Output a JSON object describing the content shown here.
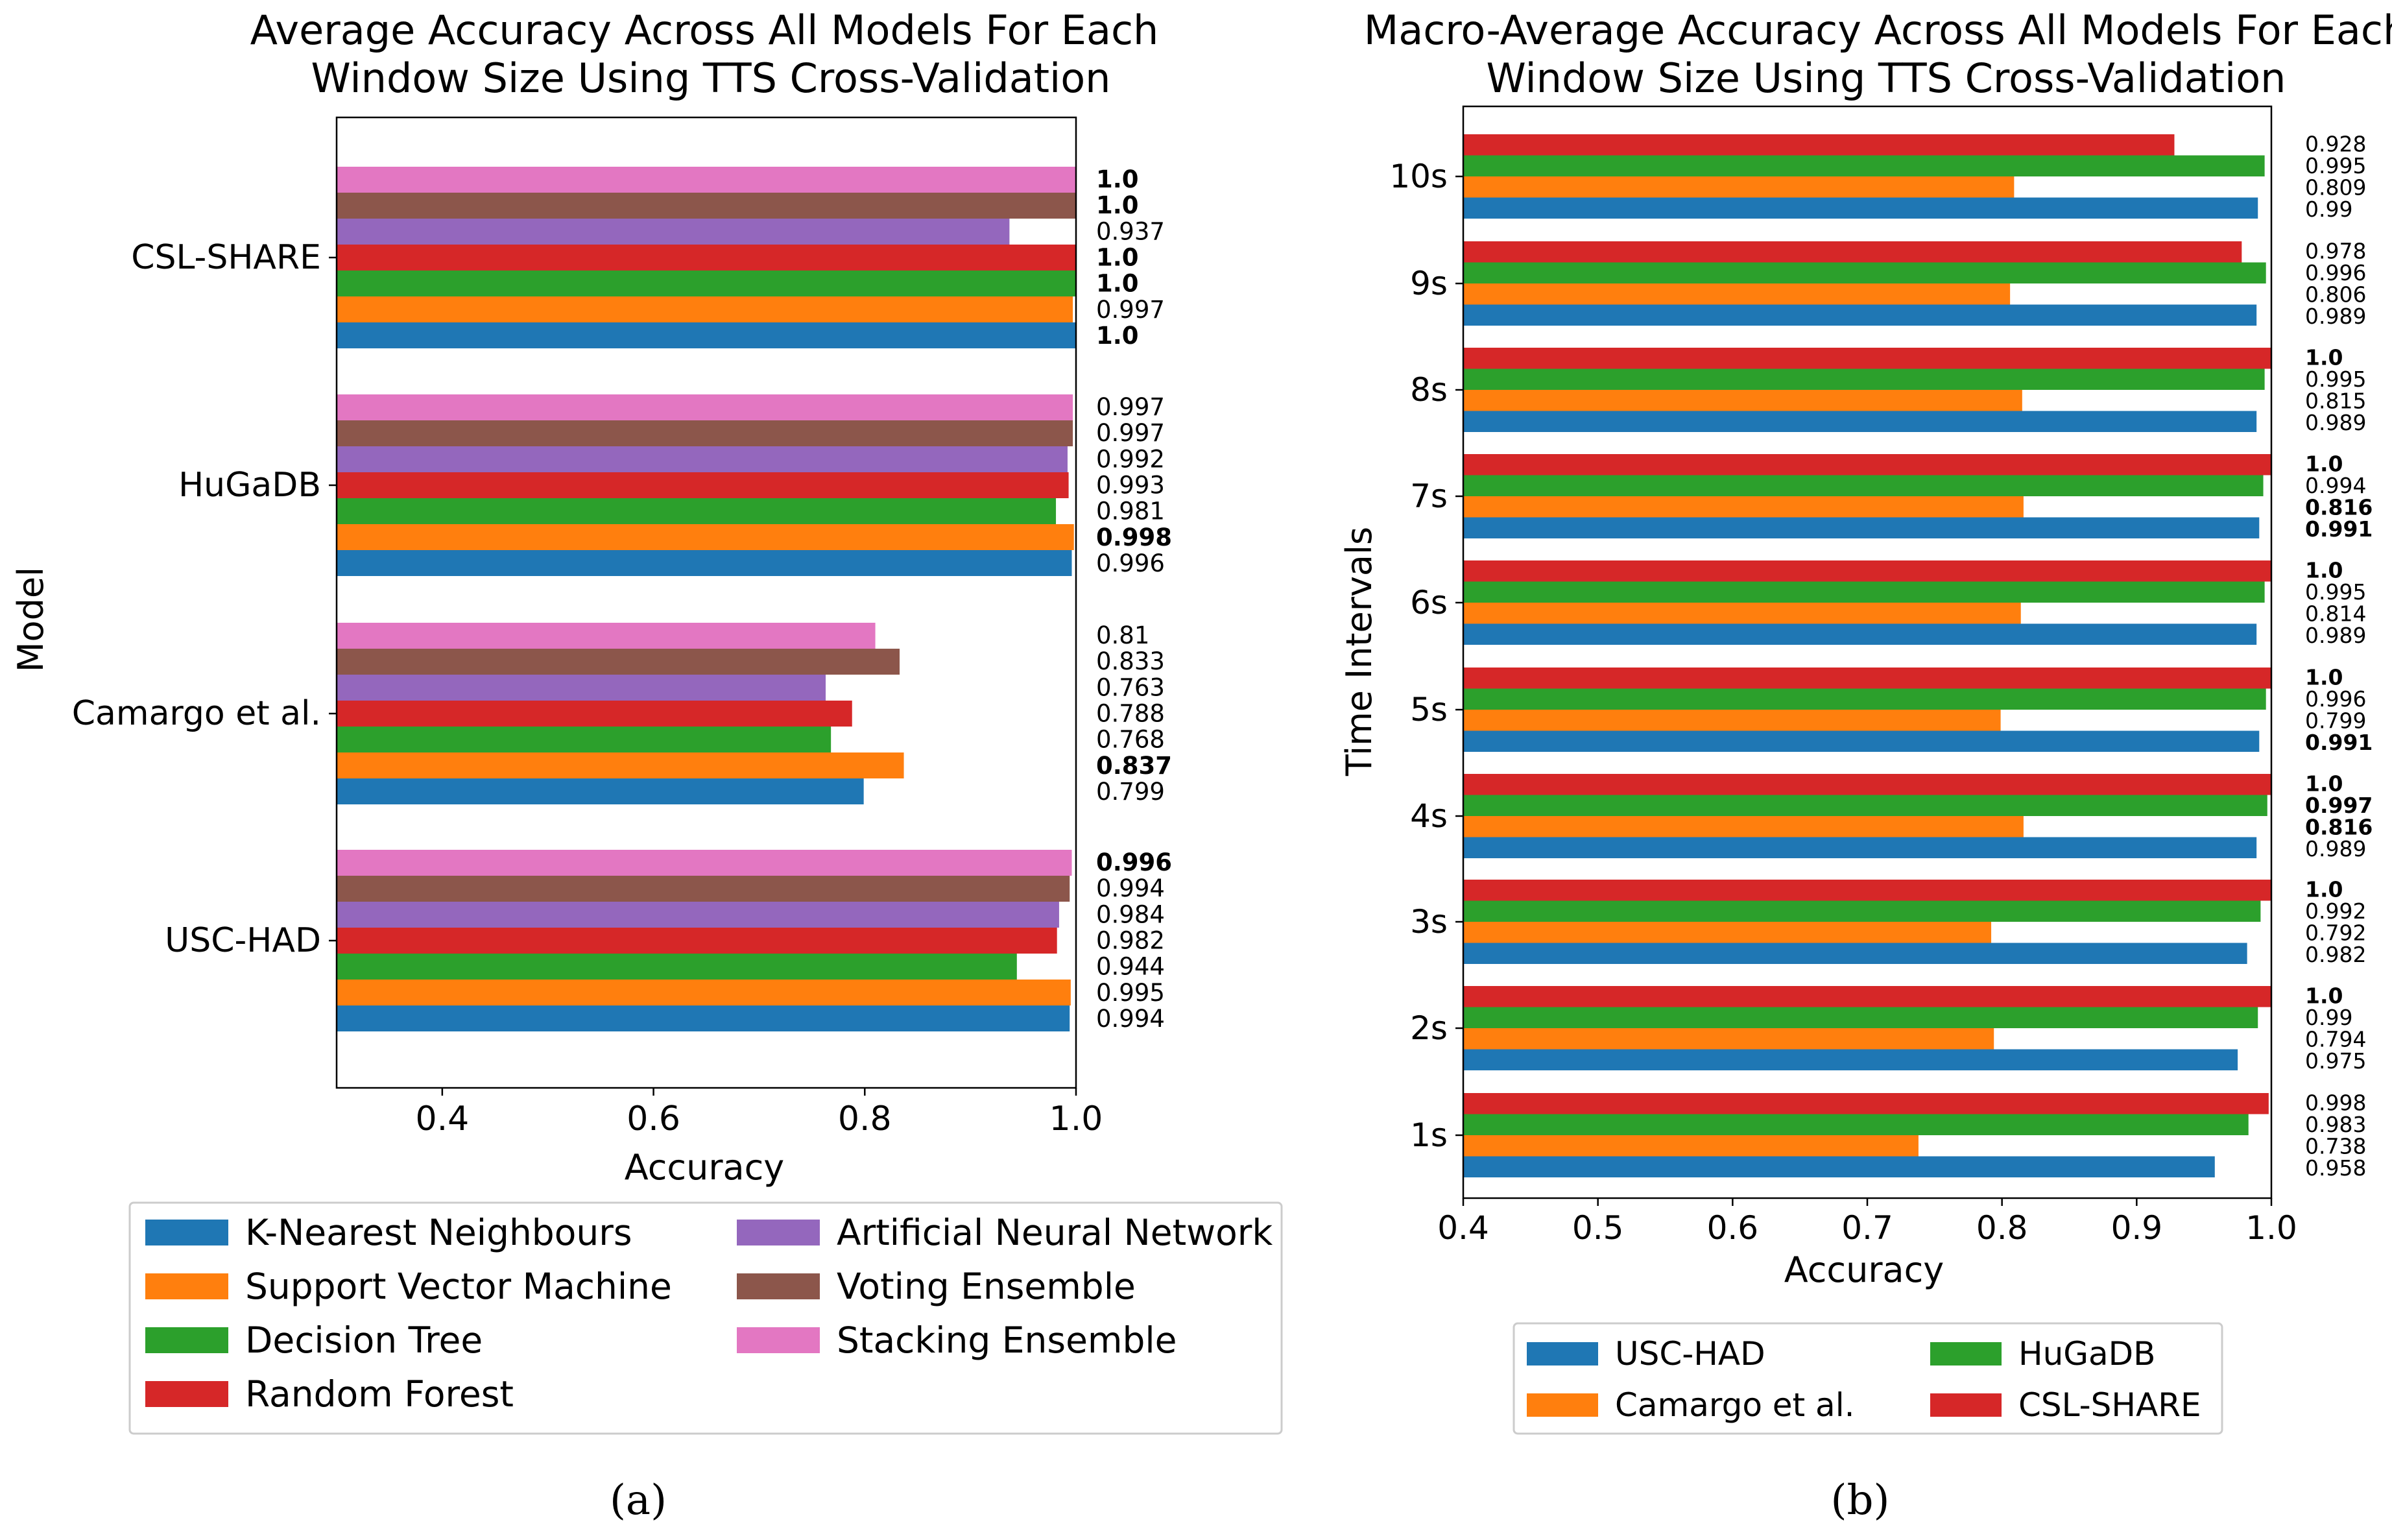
{
  "chart_data": [
    {
      "type": "bar",
      "orientation": "horizontal",
      "title": "Average Accuracy Across All Models For Each Window Size Using TTS Cross-Validation",
      "title_lines": [
        "Average Accuracy Across All Models For Each",
        "Window Size Using TTS Cross-Validation"
      ],
      "xlabel": "Accuracy",
      "ylabel": "Model",
      "xlim": [
        0.3,
        1.0
      ],
      "xticks": [
        "0.4",
        "0.6",
        "0.8",
        "1.0"
      ],
      "categories": [
        "CSL-SHARE",
        "HuGaDB",
        "Camargo et al.",
        "USC-HAD"
      ],
      "series": [
        {
          "name": "K-Nearest Neighbours",
          "color": "#1f77b4",
          "values": [
            1.0,
            0.996,
            0.799,
            0.994
          ],
          "labels": [
            "1.0",
            "0.996",
            "0.799",
            "0.994"
          ],
          "bold": [
            true,
            false,
            false,
            false
          ]
        },
        {
          "name": "Support Vector Machine",
          "color": "#ff7f0e",
          "values": [
            0.997,
            0.998,
            0.837,
            0.995
          ],
          "labels": [
            "0.997",
            "0.998",
            "0.837",
            "0.995"
          ],
          "bold": [
            false,
            true,
            true,
            false
          ]
        },
        {
          "name": "Decision Tree",
          "color": "#2ca02c",
          "values": [
            1.0,
            0.981,
            0.768,
            0.944
          ],
          "labels": [
            "1.0",
            "0.981",
            "0.768",
            "0.944"
          ],
          "bold": [
            true,
            false,
            false,
            false
          ]
        },
        {
          "name": "Random Forest",
          "color": "#d62728",
          "values": [
            1.0,
            0.993,
            0.788,
            0.982
          ],
          "labels": [
            "1.0",
            "0.993",
            "0.788",
            "0.982"
          ],
          "bold": [
            true,
            false,
            false,
            false
          ]
        },
        {
          "name": "Artificial Neural Network",
          "color": "#9467bd",
          "values": [
            0.937,
            0.992,
            0.763,
            0.984
          ],
          "labels": [
            "0.937",
            "0.992",
            "0.763",
            "0.984"
          ],
          "bold": [
            false,
            false,
            false,
            false
          ]
        },
        {
          "name": "Voting Ensemble",
          "color": "#8c564b",
          "values": [
            1.0,
            0.997,
            0.833,
            0.994
          ],
          "labels": [
            "1.0",
            "0.997",
            "0.833",
            "0.994"
          ],
          "bold": [
            true,
            false,
            false,
            false
          ]
        },
        {
          "name": "Stacking Ensemble",
          "color": "#e377c2",
          "values": [
            1.0,
            0.997,
            0.81,
            0.996
          ],
          "labels": [
            "1.0",
            "0.997",
            "0.81",
            "0.996"
          ],
          "bold": [
            true,
            false,
            false,
            true
          ]
        }
      ],
      "legend": {
        "placement": "below",
        "columns": 2
      },
      "caption": "(a)"
    },
    {
      "type": "bar",
      "orientation": "horizontal",
      "title": "Macro-Average Accuracy Across All Models For Each Window Size Using TTS Cross-Validation",
      "title_lines": [
        "Macro-Average Accuracy Across All Models For Each",
        "Window Size Using TTS Cross-Validation"
      ],
      "xlabel": "Accuracy",
      "ylabel": "Time Intervals",
      "xlim": [
        0.4,
        1.0
      ],
      "xticks": [
        "0.4",
        "0.5",
        "0.6",
        "0.7",
        "0.8",
        "0.9",
        "1.0"
      ],
      "categories": [
        "10s",
        "9s",
        "8s",
        "7s",
        "6s",
        "5s",
        "4s",
        "3s",
        "2s",
        "1s"
      ],
      "series": [
        {
          "name": "USC-HAD",
          "color": "#1f77b4",
          "values": [
            0.99,
            0.989,
            0.989,
            0.991,
            0.989,
            0.991,
            0.989,
            0.982,
            0.975,
            0.958
          ],
          "labels": [
            "0.99",
            "0.989",
            "0.989",
            "0.991",
            "0.989",
            "0.991",
            "0.989",
            "0.982",
            "0.975",
            "0.958"
          ],
          "bold": [
            false,
            false,
            false,
            true,
            false,
            true,
            false,
            false,
            false,
            false
          ]
        },
        {
          "name": "Camargo et al.",
          "color": "#ff7f0e",
          "values": [
            0.809,
            0.806,
            0.815,
            0.816,
            0.814,
            0.799,
            0.816,
            0.792,
            0.794,
            0.738
          ],
          "labels": [
            "0.809",
            "0.806",
            "0.815",
            "0.816",
            "0.814",
            "0.799",
            "0.816",
            "0.792",
            "0.794",
            "0.738"
          ],
          "bold": [
            false,
            false,
            false,
            true,
            false,
            false,
            true,
            false,
            false,
            false
          ]
        },
        {
          "name": "HuGaDB",
          "color": "#2ca02c",
          "values": [
            0.995,
            0.996,
            0.995,
            0.994,
            0.995,
            0.996,
            0.997,
            0.992,
            0.99,
            0.983
          ],
          "labels": [
            "0.995",
            "0.996",
            "0.995",
            "0.994",
            "0.995",
            "0.996",
            "0.997",
            "0.992",
            "0.99",
            "0.983"
          ],
          "bold": [
            false,
            false,
            false,
            false,
            false,
            false,
            true,
            false,
            false,
            false
          ]
        },
        {
          "name": "CSL-SHARE",
          "color": "#d62728",
          "values": [
            0.928,
            0.978,
            1.0,
            1.0,
            1.0,
            1.0,
            1.0,
            1.0,
            1.0,
            0.998
          ],
          "labels": [
            "0.928",
            "0.978",
            "1.0",
            "1.0",
            "1.0",
            "1.0",
            "1.0",
            "1.0",
            "1.0",
            "0.998"
          ],
          "bold": [
            false,
            false,
            true,
            true,
            true,
            true,
            true,
            true,
            true,
            false
          ]
        }
      ],
      "legend": {
        "placement": "below",
        "columns": 2
      },
      "caption": "(b)"
    }
  ]
}
